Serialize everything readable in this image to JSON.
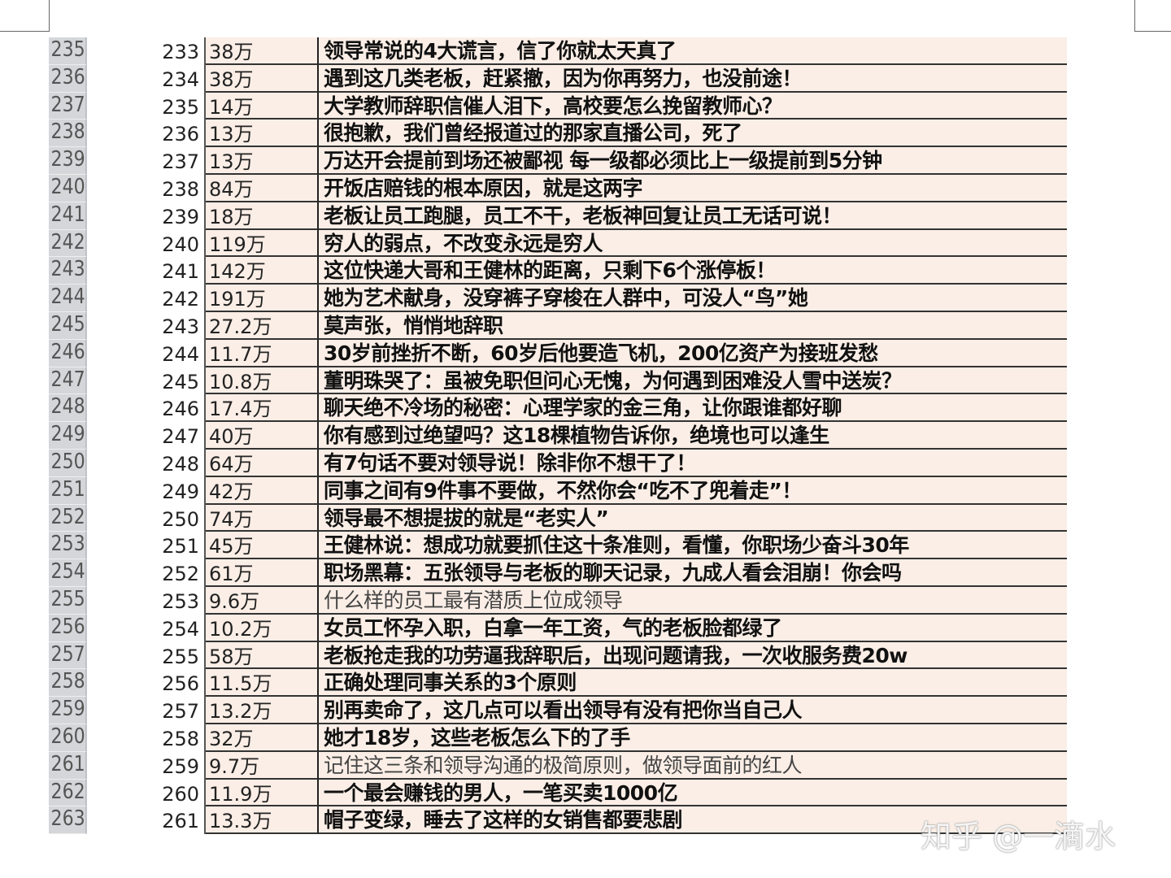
{
  "rows": [
    {
      "row": "235",
      "index": "233",
      "views": "38万",
      "title": "领导常说的4大谎言，信了你就太天真了",
      "bold": true
    },
    {
      "row": "236",
      "index": "234",
      "views": "38万",
      "title": "遇到这几类老板，赶紧撤，因为你再努力，也没前途！",
      "bold": true
    },
    {
      "row": "237",
      "index": "235",
      "views": "14万",
      "title": "大学教师辞职信催人泪下，高校要怎么挽留教师心？",
      "bold": true
    },
    {
      "row": "238",
      "index": "236",
      "views": "13万",
      "title": "很抱歉，我们曾经报道过的那家直播公司，死了",
      "bold": true
    },
    {
      "row": "239",
      "index": "237",
      "views": "13万",
      "title": "万达开会提前到场还被鄙视 每一级都必须比上一级提前到5分钟",
      "bold": true
    },
    {
      "row": "240",
      "index": "238",
      "views": "84万",
      "title": "开饭店赔钱的根本原因，就是这两字",
      "bold": true
    },
    {
      "row": "241",
      "index": "239",
      "views": "18万",
      "title": "老板让员工跑腿，员工不干，老板神回复让员工无话可说！",
      "bold": true
    },
    {
      "row": "242",
      "index": "240",
      "views": "119万",
      "title": "穷人的弱点，不改变永远是穷人",
      "bold": true
    },
    {
      "row": "243",
      "index": "241",
      "views": "142万",
      "title": "这位快递大哥和王健林的距离，只剩下6个涨停板！",
      "bold": true
    },
    {
      "row": "244",
      "index": "242",
      "views": "191万",
      "title": "她为艺术献身，没穿裤子穿梭在人群中，可没人“鸟”她",
      "bold": true
    },
    {
      "row": "245",
      "index": "243",
      "views": "27.2万",
      "title": "莫声张，悄悄地辞职",
      "bold": true
    },
    {
      "row": "246",
      "index": "244",
      "views": "11.7万",
      "title": "30岁前挫折不断，60岁后他要造飞机，200亿资产为接班发愁",
      "bold": true
    },
    {
      "row": "247",
      "index": "245",
      "views": "10.8万",
      "title": "董明珠哭了：虽被免职但问心无愧，为何遇到困难没人雪中送炭？",
      "bold": true
    },
    {
      "row": "248",
      "index": "246",
      "views": "17.4万",
      "title": "聊天绝不冷场的秘密：心理学家的金三角，让你跟谁都好聊",
      "bold": true
    },
    {
      "row": "249",
      "index": "247",
      "views": "40万",
      "title": "你有感到过绝望吗？这18棵植物告诉你，绝境也可以逢生",
      "bold": true
    },
    {
      "row": "250",
      "index": "248",
      "views": "64万",
      "title": "有7句话不要对领导说！除非你不想干了！",
      "bold": true
    },
    {
      "row": "251",
      "index": "249",
      "views": "42万",
      "title": "同事之间有9件事不要做，不然你会“吃不了兜着走”！",
      "bold": true
    },
    {
      "row": "252",
      "index": "250",
      "views": "74万",
      "title": "领导最不想提拔的就是“老实人”",
      "bold": true
    },
    {
      "row": "253",
      "index": "251",
      "views": "45万",
      "title": "王健林说：想成功就要抓住这十条准则，看懂，你职场少奋斗30年",
      "bold": true
    },
    {
      "row": "254",
      "index": "252",
      "views": "61万",
      "title": "职场黑幕：五张领导与老板的聊天记录，九成人看会泪崩！你会吗",
      "bold": true
    },
    {
      "row": "255",
      "index": "253",
      "views": "9.6万",
      "title": "什么样的员工最有潜质上位成领导",
      "bold": false
    },
    {
      "row": "256",
      "index": "254",
      "views": "10.2万",
      "title": "女员工怀孕入职，白拿一年工资，气的老板脸都绿了",
      "bold": true
    },
    {
      "row": "257",
      "index": "255",
      "views": "58万",
      "title": "老板抢走我的功劳逼我辞职后，出现问题请我，一次收服务费20w",
      "bold": true
    },
    {
      "row": "258",
      "index": "256",
      "views": "11.5万",
      "title": "正确处理同事关系的3个原则",
      "bold": true
    },
    {
      "row": "259",
      "index": "257",
      "views": "13.2万",
      "title": "别再卖命了，这几点可以看出领导有没有把你当自己人",
      "bold": true
    },
    {
      "row": "260",
      "index": "258",
      "views": "32万",
      "title": "她才18岁，这些老板怎么下的了手",
      "bold": true
    },
    {
      "row": "261",
      "index": "259",
      "views": "9.7万",
      "title": "记住这三条和领导沟通的极简原则，做领导面前的红人",
      "bold": false
    },
    {
      "row": "262",
      "index": "260",
      "views": "11.9万",
      "title": "一个最会赚钱的男人，一笔买卖1000亿",
      "bold": true
    },
    {
      "row": "263",
      "index": "261",
      "views": "13.3万",
      "title": "帽子变绿，睡去了这样的女销售都要悲剧",
      "bold": true
    }
  ],
  "watermark": "知乎 @一滴水",
  "colors": {
    "title_bg": "#faeee6",
    "row_header_bg": "#d4d6d9"
  }
}
